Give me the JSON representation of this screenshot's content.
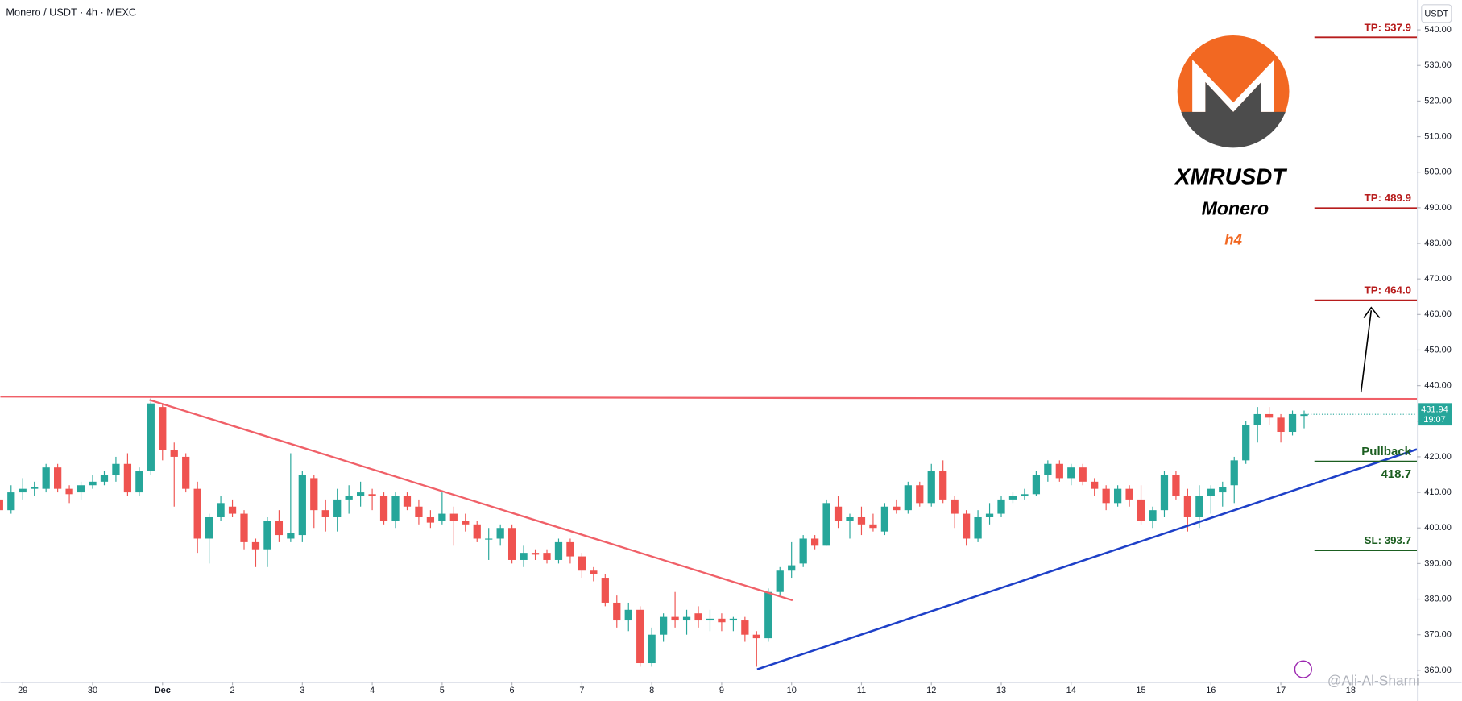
{
  "chart_data": {
    "type": "candlestick",
    "title": "Monero / USDT · 4h · MEXC",
    "currency": "USDT",
    "open": [
      408,
      405,
      410,
      411,
      411,
      417,
      411,
      410,
      412,
      413,
      415,
      418,
      410,
      416,
      434,
      422,
      420,
      411,
      397,
      403,
      406,
      404,
      396,
      394,
      402,
      397,
      398,
      414,
      405,
      403,
      408,
      409,
      409.5,
      409,
      402,
      409,
      406,
      403,
      402,
      404,
      402,
      401,
      397,
      397,
      400,
      391,
      393,
      393,
      391,
      396,
      392,
      388,
      386,
      379,
      374,
      377,
      362,
      370,
      375,
      374,
      376,
      374,
      374.5,
      374,
      374,
      370,
      369,
      382,
      388,
      390,
      397,
      395,
      406,
      402,
      403,
      401,
      399,
      406,
      405,
      412,
      407,
      416,
      408,
      404,
      397,
      403,
      404,
      408,
      409,
      409.5,
      415,
      418,
      414,
      417,
      413,
      411,
      407,
      411,
      408,
      402,
      405,
      415,
      409,
      403,
      409,
      410,
      412,
      419,
      429,
      432,
      431,
      427,
      431.5
    ],
    "high": [
      410,
      412,
      414,
      413,
      418,
      418,
      412,
      413,
      415,
      416,
      420,
      421,
      417,
      436.5,
      435,
      424,
      421,
      413,
      404,
      409,
      408,
      405,
      397,
      403,
      405,
      421,
      416,
      415,
      408,
      411,
      412,
      413,
      411,
      410,
      410,
      410,
      408,
      405,
      410,
      406,
      404,
      402,
      400,
      401,
      401,
      395,
      394,
      394,
      397,
      397,
      393,
      389,
      387,
      381,
      379,
      378,
      372,
      376,
      382,
      377,
      378,
      377,
      376,
      375,
      375,
      371,
      383,
      389,
      396,
      398,
      398,
      408,
      409,
      404,
      406,
      404,
      407,
      408,
      413,
      413,
      418,
      419,
      409,
      405,
      405,
      407,
      409,
      410,
      411,
      416,
      419,
      419,
      418,
      418,
      414,
      412,
      412,
      412,
      412,
      406,
      416,
      416,
      411,
      412,
      412,
      413,
      420,
      430,
      434,
      434,
      432,
      433,
      433
    ],
    "low": [
      404,
      404,
      408,
      409,
      410,
      410,
      407,
      408,
      411,
      412,
      413,
      409,
      409,
      415,
      419,
      406,
      410,
      393,
      390,
      402,
      403,
      394,
      389,
      389,
      396,
      396,
      396,
      400,
      399,
      399,
      404,
      406,
      405,
      401,
      400,
      405,
      401,
      400,
      401,
      395,
      399,
      396,
      391,
      395,
      390,
      389,
      391,
      390,
      390,
      390,
      386,
      385,
      378,
      372,
      371,
      361,
      361,
      368,
      372,
      370,
      372,
      371,
      371,
      371,
      368,
      361,
      368,
      381,
      386,
      389,
      394,
      395,
      400,
      397,
      398,
      399,
      398,
      404,
      404,
      406,
      406,
      407,
      400,
      395,
      396,
      401,
      403,
      407,
      408,
      409,
      413,
      413,
      412,
      412,
      409,
      405,
      406,
      406,
      401,
      400,
      403,
      408,
      399,
      400,
      404,
      406,
      407,
      418,
      424,
      429,
      424,
      426,
      428
    ],
    "close": [
      405,
      410,
      411,
      411.5,
      417,
      411,
      409.5,
      412,
      413,
      415,
      418,
      410,
      416,
      435,
      422,
      420,
      411,
      397,
      403,
      407,
      404,
      396,
      394,
      402,
      398,
      398.5,
      415,
      405,
      403,
      408,
      409,
      410,
      409,
      402,
      409,
      406,
      403,
      401.5,
      404,
      402,
      401,
      397,
      397,
      400,
      391,
      393,
      392.5,
      391,
      396,
      392,
      388,
      387,
      379,
      374,
      377,
      362,
      370,
      375,
      374,
      375,
      374,
      374.5,
      373.5,
      374.5,
      370,
      369,
      382,
      388,
      389.5,
      397,
      395,
      407,
      402,
      403,
      401,
      400,
      406,
      405,
      412,
      407,
      416,
      408,
      404,
      397,
      403,
      404,
      408,
      409,
      409.5,
      415,
      418,
      414,
      417,
      413,
      411,
      407,
      411,
      408,
      402,
      405,
      415,
      409,
      403,
      409,
      411,
      411.5,
      419,
      429,
      432,
      431,
      427,
      432,
      431.94
    ],
    "first_index": -2,
    "xlim": [
      -1.92,
      119.68
    ],
    "xticks": [
      {
        "value": 0,
        "label": "29"
      },
      {
        "value": 6,
        "label": "30"
      },
      {
        "value": 12,
        "label": "Dec"
      },
      {
        "value": 18,
        "label": "2"
      },
      {
        "value": 24,
        "label": "3"
      },
      {
        "value": 30,
        "label": "4"
      },
      {
        "value": 36,
        "label": "5"
      },
      {
        "value": 42,
        "label": "6"
      },
      {
        "value": 48,
        "label": "7"
      },
      {
        "value": 54,
        "label": "8"
      },
      {
        "value": 60,
        "label": "9"
      },
      {
        "value": 66,
        "label": "10"
      },
      {
        "value": 72,
        "label": "11"
      },
      {
        "value": 78,
        "label": "12"
      },
      {
        "value": 84,
        "label": "13"
      },
      {
        "value": 90,
        "label": "14"
      },
      {
        "value": 96,
        "label": "15"
      },
      {
        "value": 102,
        "label": "16"
      },
      {
        "value": 108,
        "label": "17"
      },
      {
        "value": 114,
        "label": "18"
      }
    ],
    "ylim": [
      356.6,
      548.4
    ],
    "yticks": [
      {
        "value": 360,
        "label": "360.00"
      },
      {
        "value": 370,
        "label": "370.00"
      },
      {
        "value": 380,
        "label": "380.00"
      },
      {
        "value": 390,
        "label": "390.00"
      },
      {
        "value": 400,
        "label": "400.00"
      },
      {
        "value": 410,
        "label": "410.00"
      },
      {
        "value": 420,
        "label": "420.00"
      },
      {
        "value": 430,
        "label": "430.00"
      },
      {
        "value": 440,
        "label": "440.00"
      },
      {
        "value": 450,
        "label": "450.00"
      },
      {
        "value": 460,
        "label": "460.00"
      },
      {
        "value": 470,
        "label": "470.00"
      },
      {
        "value": 480,
        "label": "480.00"
      },
      {
        "value": 490,
        "label": "490.00"
      },
      {
        "value": 500,
        "label": "500.00"
      },
      {
        "value": 510,
        "label": "510.00"
      },
      {
        "value": 520,
        "label": "520.00"
      },
      {
        "value": 530,
        "label": "530.00"
      },
      {
        "value": 540,
        "label": "540.00"
      }
    ],
    "up_color": "#26a69a",
    "down_color": "#ef5350",
    "countdown": "19:07",
    "levels": [
      {
        "label": "TP: 537.9",
        "price": 537.9,
        "color": "#b71c1c"
      },
      {
        "label": "TP: 489.9",
        "price": 489.9,
        "color": "#b71c1c"
      },
      {
        "label": "TP: 464.0",
        "price": 464.0,
        "color": "#b71c1c"
      },
      {
        "label": "Pullback",
        "price_label": "418.7",
        "price": 418.7,
        "color": "#1b5e20"
      },
      {
        "label": "SL: 393.7",
        "price": 393.7,
        "color": "#1b5e20"
      }
    ],
    "annotations": {
      "symbol": "XMRUSDT",
      "name": "Monero",
      "timeframe": "h4"
    },
    "watermark": "@Ali-Al-Sharni"
  }
}
